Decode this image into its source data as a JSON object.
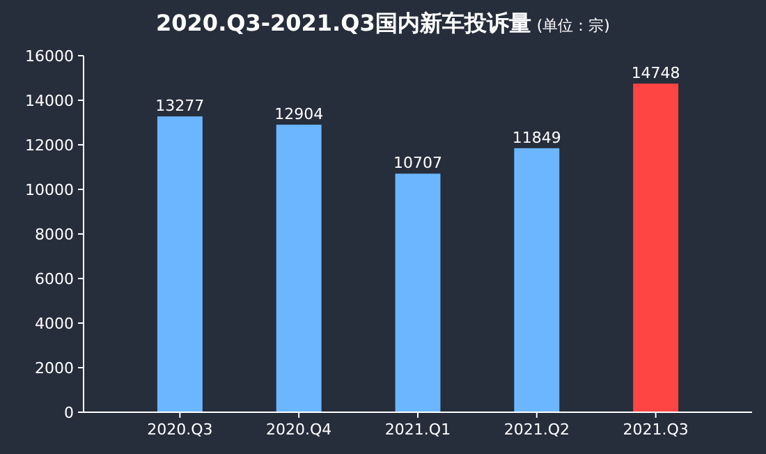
{
  "chart_data": {
    "type": "bar",
    "title": "2020.Q3-2021.Q3国内新车投诉量",
    "subtitle": "(单位：宗)",
    "categories": [
      "2020.Q3",
      "2020.Q4",
      "2021.Q1",
      "2021.Q2",
      "2021.Q3"
    ],
    "values": [
      13277,
      12904,
      10707,
      11849,
      14748
    ],
    "colors": [
      "#6cb6ff",
      "#6cb6ff",
      "#6cb6ff",
      "#6cb6ff",
      "#ff4444"
    ],
    "ylim": [
      0,
      16000
    ],
    "yticks": [
      0,
      2000,
      4000,
      6000,
      8000,
      10000,
      12000,
      14000,
      16000
    ],
    "data_labels": true
  }
}
